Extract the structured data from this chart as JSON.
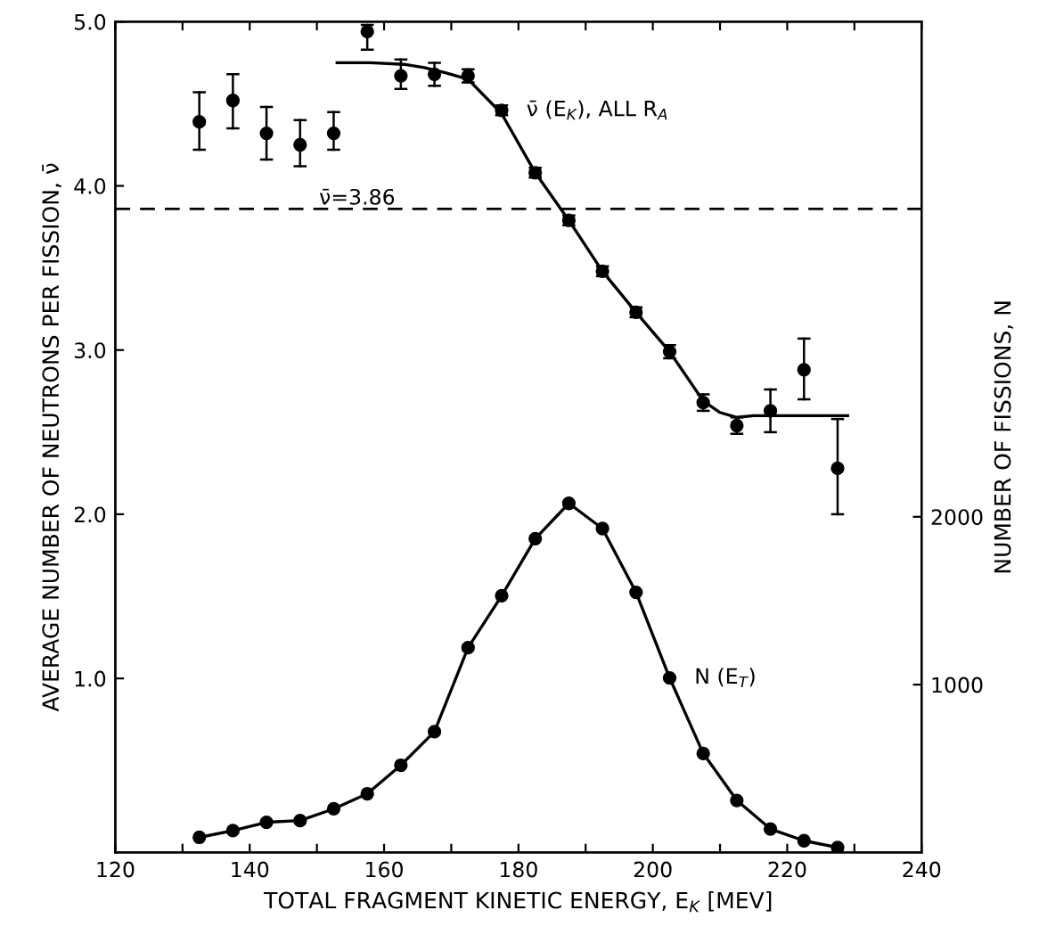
{
  "chart_data": {
    "type": "scatter",
    "xlabel": "TOTAL FRAGMENT KINETIC ENERGY, E$_{K}$ [MEV]",
    "ylabel": "AVERAGE NUMBER OF NEUTRONS PER FISSION, ν̄",
    "y2label": "NUMBER OF FISSIONS, N",
    "xlim": [
      120,
      240
    ],
    "xticks": [
      120,
      {
        "value": 130,
        "label": null
      },
      140,
      {
        "value": 150,
        "label": null
      },
      160,
      {
        "value": 170,
        "label": null
      },
      180,
      {
        "value": 190,
        "label": null
      },
      200,
      {
        "value": 210,
        "label": null
      },
      220,
      {
        "value": 230,
        "label": null
      },
      240
    ],
    "ylim": [
      -0.06,
      5.0
    ],
    "yticks": [
      {
        "value": 1,
        "label": "1.0"
      },
      {
        "value": 2,
        "label": "2.0"
      },
      {
        "value": 3,
        "label": "3.0"
      },
      {
        "value": 4,
        "label": "4.0"
      },
      {
        "value": 5,
        "label": "5.0"
      }
    ],
    "y2lim": [
      0,
      4950
    ],
    "y2ticks": [
      1000,
      2000
    ],
    "grid": false,
    "legend": false,
    "marker": "circle",
    "ref_lines": [
      {
        "axis": "y",
        "value": 3.86,
        "label": "ν̄=3.86",
        "color": "#000000",
        "line_style": "dashed"
      }
    ],
    "series": [
      {
        "name": "ν̄ (E$_{K}$), ALL R$_{A}$",
        "color": "#000000",
        "x": [
          132.5,
          137.5,
          142.5,
          147.5,
          152.5,
          157.5,
          162.5,
          167.5,
          172.5,
          177.5,
          182.5,
          187.5,
          192.5,
          197.5,
          202.5,
          207.5,
          212.5,
          217.5,
          222.5,
          227.5
        ],
        "values": [
          4.39,
          4.52,
          4.32,
          4.25,
          4.32,
          4.94,
          4.67,
          4.68,
          4.67,
          4.46,
          4.08,
          3.79,
          3.48,
          3.23,
          2.99,
          2.68,
          2.54,
          2.63,
          2.88,
          2.28
        ],
        "errors": [
          [
            4.22,
            4.57
          ],
          [
            4.35,
            4.68
          ],
          [
            4.16,
            4.48
          ],
          [
            4.12,
            4.4
          ],
          [
            4.22,
            4.45
          ],
          [
            4.83,
            4.98
          ],
          [
            4.59,
            4.77
          ],
          [
            4.61,
            4.75
          ],
          0.04,
          0.03,
          0.03,
          0.03,
          0.03,
          0.03,
          0.04,
          0.05,
          0.05,
          [
            2.5,
            2.76
          ],
          [
            2.7,
            3.07
          ],
          [
            2.0,
            2.58
          ]
        ]
      },
      {
        "type": "line",
        "color": "#000000",
        "marker": "none",
        "x": [
          153,
          158,
          163,
          166,
          169,
          172.5,
          177.5,
          182.5,
          187.5,
          192.5,
          197.5,
          202.5,
          207.5,
          210,
          212.5,
          215,
          220,
          229
        ],
        "values": [
          4.75,
          4.75,
          4.74,
          4.72,
          4.69,
          4.65,
          4.44,
          4.08,
          3.79,
          3.48,
          3.23,
          2.99,
          2.69,
          2.62,
          2.59,
          2.6,
          2.6,
          2.6
        ]
      },
      {
        "name": "N (E$_{T}$)",
        "type": "line",
        "axis": "y2",
        "color": "#000000",
        "x": [
          132.5,
          137.5,
          142.5,
          147.5,
          152.5,
          157.5,
          162.5,
          167.5,
          172.5,
          177.5,
          182.5,
          187.5,
          192.5,
          197.5,
          202.5,
          207.5,
          212.5,
          217.5,
          222.5,
          227.5
        ],
        "values": [
          90,
          130,
          180,
          190,
          260,
          350,
          520,
          720,
          1220,
          1530,
          1870,
          2080,
          1930,
          1550,
          1040,
          590,
          310,
          140,
          70,
          30
        ]
      }
    ]
  }
}
